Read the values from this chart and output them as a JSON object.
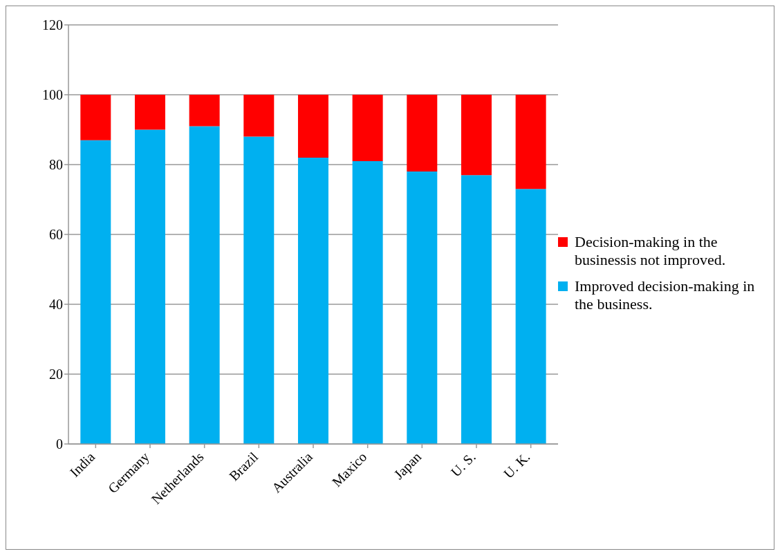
{
  "chart_data": {
    "type": "bar",
    "stacked": true,
    "categories": [
      "India",
      "Germany",
      "Netherlands",
      "Brazil",
      "Australia",
      "Maxico",
      "Japan",
      "U. S.",
      "U. K."
    ],
    "series": [
      {
        "name": "Improved decision-making in the business.",
        "color": "#00b0f0",
        "values": [
          87,
          90,
          91,
          88,
          82,
          81,
          78,
          77,
          73
        ]
      },
      {
        "name": "Decision-making in the businessis not improved.",
        "color": "#ff0000",
        "values": [
          13,
          10,
          9,
          12,
          18,
          19,
          22,
          23,
          27
        ]
      }
    ],
    "ylim": [
      0,
      120
    ],
    "yticks": [
      0,
      20,
      40,
      60,
      80,
      100,
      120
    ],
    "grid": "y",
    "legend": "right"
  }
}
